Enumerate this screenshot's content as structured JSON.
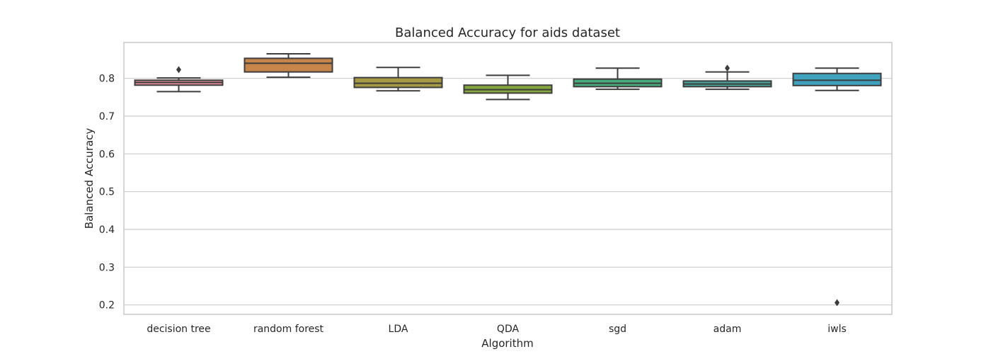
{
  "chart_data": {
    "type": "box",
    "title": "Balanced Accuracy for aids dataset",
    "xlabel": "Algorithm",
    "ylabel": "Balanced Accuracy",
    "ylim": [
      0.175,
      0.895
    ],
    "yticks": [
      0.2,
      0.3,
      0.4,
      0.5,
      0.6,
      0.7,
      0.8
    ],
    "grid": true,
    "categories": [
      "decision tree",
      "random forest",
      "LDA",
      "QDA",
      "sgd",
      "adam",
      "iwls"
    ],
    "boxes": [
      {
        "category": "decision tree",
        "whislo": 0.765,
        "q1": 0.782,
        "med": 0.789,
        "q3": 0.795,
        "whishi": 0.801,
        "fliers": [
          0.823
        ],
        "color": "#e8919a"
      },
      {
        "category": "random forest",
        "whislo": 0.803,
        "q1": 0.817,
        "med": 0.84,
        "q3": 0.853,
        "whishi": 0.865,
        "fliers": [],
        "color": "#c8854a"
      },
      {
        "category": "LDA",
        "whislo": 0.767,
        "q1": 0.776,
        "med": 0.787,
        "q3": 0.802,
        "whishi": 0.829,
        "fliers": [],
        "color": "#a69a44"
      },
      {
        "category": "QDA",
        "whislo": 0.744,
        "q1": 0.761,
        "med": 0.77,
        "q3": 0.782,
        "whishi": 0.808,
        "fliers": [],
        "color": "#86a63e"
      },
      {
        "category": "sgd",
        "whislo": 0.771,
        "q1": 0.778,
        "med": 0.787,
        "q3": 0.798,
        "whishi": 0.827,
        "fliers": [],
        "color": "#4aa97a"
      },
      {
        "category": "adam",
        "whislo": 0.771,
        "q1": 0.778,
        "med": 0.785,
        "q3": 0.793,
        "whishi": 0.817,
        "fliers": [
          0.827
        ],
        "color": "#47a39b"
      },
      {
        "category": "iwls",
        "whislo": 0.768,
        "q1": 0.781,
        "med": 0.795,
        "q3": 0.813,
        "whishi": 0.827,
        "fliers": [
          0.206
        ],
        "color": "#3fa3c0"
      }
    ]
  }
}
